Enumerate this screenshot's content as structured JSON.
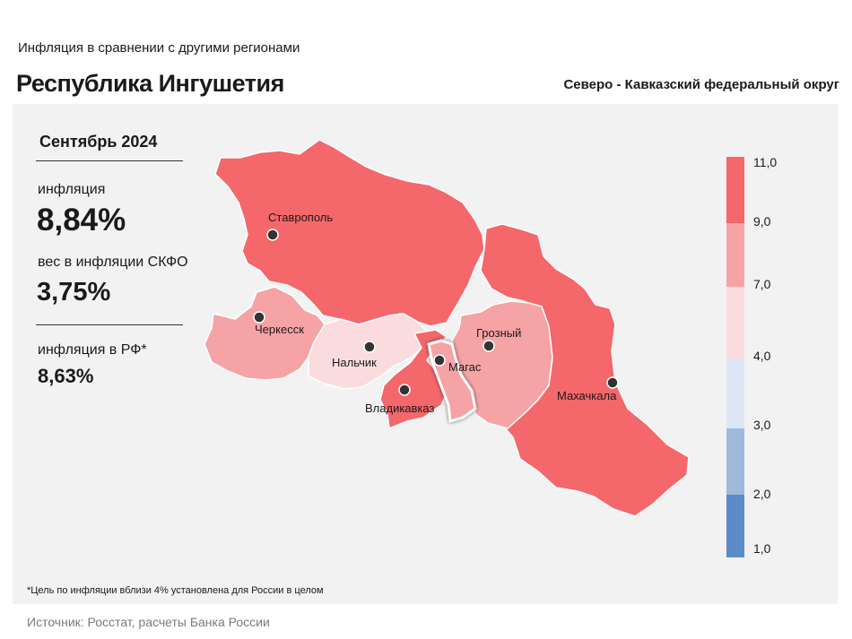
{
  "header": {
    "subtitle": "Инфляция  в сравнении  с другими  регионами",
    "title": "Республика Ингушетия",
    "district": "Северо - Кавказский федеральный округ"
  },
  "stats": {
    "period": "Сентябрь 2024",
    "inflation_label": "инфляция",
    "inflation_value": "8,84%",
    "weight_label": "вес в инфляции  СКФО",
    "weight_value": "3,75%",
    "rf_label": "инфляция  в РФ*",
    "rf_value": "8,63%"
  },
  "map": {
    "cities": {
      "stavropol": "Ставрополь",
      "cherkessk": "Черкесск",
      "nalchik": "Нальчик",
      "magas": "Магас",
      "vladikavkaz": "Владикавказ",
      "grozny": "Грозный",
      "makhachkala": "Махачкала"
    },
    "colors": {
      "high": "#f4676b",
      "mid_high": "#f6a3a6",
      "mid": "#fadcdf",
      "highlight_border": "#ffffff"
    }
  },
  "legend": {
    "ticks": [
      "11,0",
      "9,0",
      "7,0",
      "4,0",
      "3,0",
      "2,0",
      "1,0"
    ],
    "colors": [
      "#f4676b",
      "#f6a3a6",
      "#fadcdf",
      "#dce6f5",
      "#9fb9dc",
      "#5b8bc9"
    ]
  },
  "footnote": "*Цель по инфляции вблизи 4% установлена для России в целом",
  "source": "Источник: Росстат, расчеты Банка России"
}
